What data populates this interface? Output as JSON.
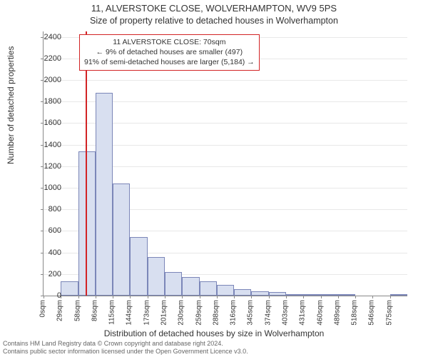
{
  "title_line1": "11, ALVERSTOKE CLOSE, WOLVERHAMPTON, WV9 5PS",
  "title_line2": "Size of property relative to detached houses in Wolverhampton",
  "ylabel": "Number of detached properties",
  "xlabel": "Distribution of detached houses by size in Wolverhampton",
  "footer_line1": "Contains HM Land Registry data © Crown copyright and database right 2024.",
  "footer_line2": "Contains public sector information licensed under the Open Government Licence v3.0.",
  "callout": {
    "line1": "11 ALVERSTOKE CLOSE: 70sqm",
    "line2": "← 9% of detached houses are smaller (497)",
    "line3": "91% of semi-detached houses are larger (5,184) →"
  },
  "chart": {
    "type": "histogram",
    "background_color": "#ffffff",
    "grid_color": "#e8e8e8",
    "axis_color": "#888888",
    "bar_fill": "#d8dff0",
    "bar_border": "#7b86b8",
    "marker_color": "#d22325",
    "marker_x": 70,
    "x_bin_width": 28.8,
    "x_start": 0,
    "x_tick_labels": [
      "0sqm",
      "29sqm",
      "58sqm",
      "86sqm",
      "115sqm",
      "144sqm",
      "173sqm",
      "201sqm",
      "230sqm",
      "259sqm",
      "288sqm",
      "316sqm",
      "345sqm",
      "374sqm",
      "403sqm",
      "431sqm",
      "460sqm",
      "489sqm",
      "518sqm",
      "546sqm",
      "575sqm"
    ],
    "ylim": [
      0,
      2450
    ],
    "y_ticks": [
      0,
      200,
      400,
      600,
      800,
      1000,
      1200,
      1400,
      1600,
      1800,
      2000,
      2200,
      2400
    ],
    "bar_values": [
      0,
      130,
      1340,
      1880,
      1040,
      540,
      360,
      220,
      170,
      130,
      100,
      60,
      40,
      30,
      15,
      10,
      15,
      10,
      0,
      0,
      5
    ],
    "label_fontsize": 11,
    "title_fontsize": 13
  }
}
